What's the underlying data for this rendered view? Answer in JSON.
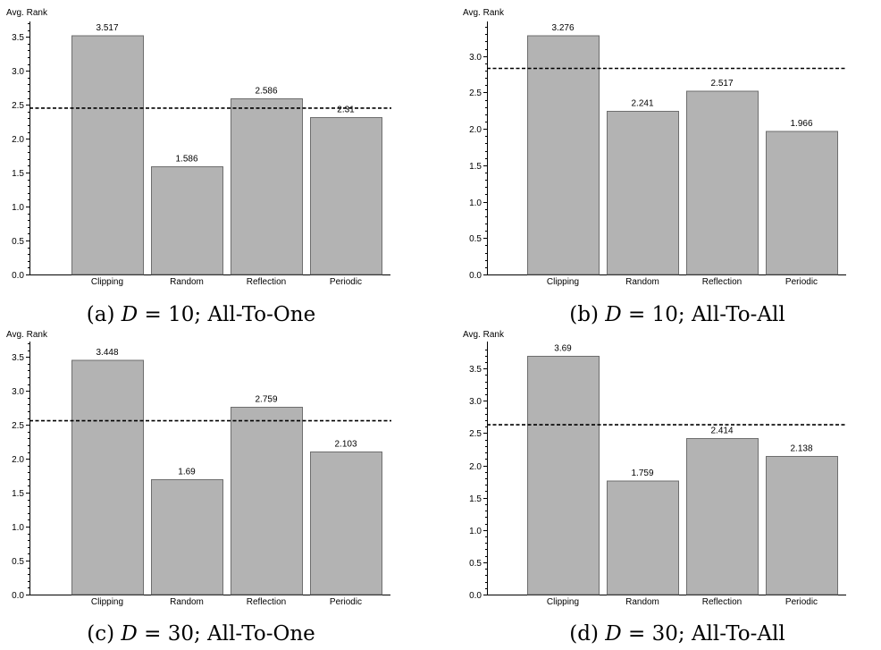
{
  "chart_data": [
    {
      "type": "bar",
      "caption_prefix": "(a)",
      "caption_var": "D",
      "caption_rest": " = 10; All-To-One",
      "ylabel": "Avg. Rank",
      "categories": [
        "Clipping",
        "Random",
        "Reflection",
        "Periodic"
      ],
      "values": [
        3.517,
        1.586,
        2.586,
        2.31
      ],
      "value_labels": [
        "3.517",
        "1.586",
        "2.586",
        "2.31"
      ],
      "mean_line": 2.45,
      "ylim": [
        0,
        3.7
      ],
      "yticks": [
        "0.0",
        "0.5",
        "1.0",
        "1.5",
        "2.0",
        "2.5",
        "3.0",
        "3.5"
      ]
    },
    {
      "type": "bar",
      "caption_prefix": "(b)",
      "caption_var": "D",
      "caption_rest": " = 10; All-To-All",
      "ylabel": "Avg. Rank",
      "categories": [
        "Clipping",
        "Random",
        "Reflection",
        "Periodic"
      ],
      "values": [
        3.276,
        2.241,
        2.517,
        1.966
      ],
      "value_labels": [
        "3.276",
        "2.241",
        "2.517",
        "1.966"
      ],
      "mean_line": 2.83,
      "ylim": [
        0,
        3.45
      ],
      "yticks": [
        "0.0",
        "0.5",
        "1.0",
        "1.5",
        "2.0",
        "2.5",
        "3.0"
      ]
    },
    {
      "type": "bar",
      "caption_prefix": "(c)",
      "caption_var": "D",
      "caption_rest": " = 30; All-To-One",
      "ylabel": "Avg. Rank",
      "categories": [
        "Clipping",
        "Random",
        "Reflection",
        "Periodic"
      ],
      "values": [
        3.448,
        1.69,
        2.759,
        2.103
      ],
      "value_labels": [
        "3.448",
        "1.69",
        "2.759",
        "2.103"
      ],
      "mean_line": 2.56,
      "ylim": [
        0,
        3.7
      ],
      "yticks": [
        "0.0",
        "0.5",
        "1.0",
        "1.5",
        "2.0",
        "2.5",
        "3.0",
        "3.5"
      ]
    },
    {
      "type": "bar",
      "caption_prefix": "(d)",
      "caption_var": "D",
      "caption_rest": " = 30; All-To-All",
      "ylabel": "Avg. Rank",
      "categories": [
        "Clipping",
        "Random",
        "Reflection",
        "Periodic"
      ],
      "values": [
        3.69,
        1.759,
        2.414,
        2.138
      ],
      "value_labels": [
        "3.69",
        "1.759",
        "2.414",
        "2.138"
      ],
      "mean_line": 2.63,
      "ylim": [
        0,
        3.89
      ],
      "yticks": [
        "0.0",
        "0.5",
        "1.0",
        "1.5",
        "2.0",
        "2.5",
        "3.0",
        "3.5"
      ]
    }
  ]
}
